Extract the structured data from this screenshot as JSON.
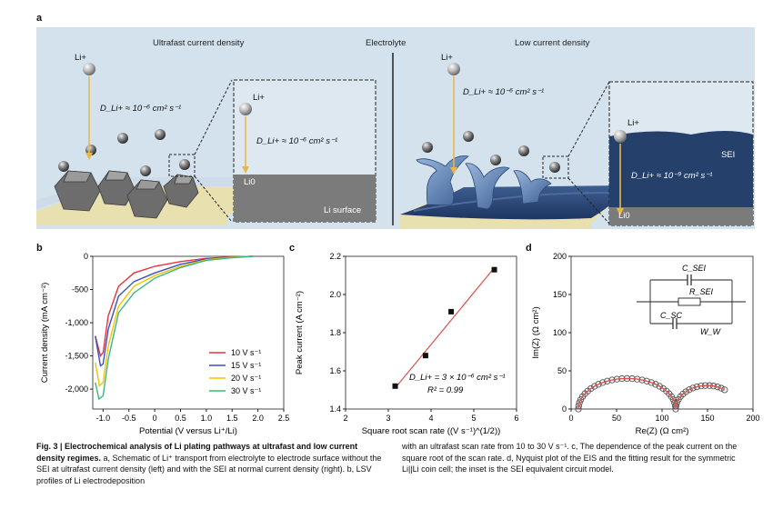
{
  "panel_a": {
    "letter": "a",
    "left_title": "Ultrafast current density",
    "center_title": "Electrolyte",
    "right_title": "Low current density",
    "li_ion": "Li+",
    "diff_fast": "D_Li+ ≈ 10⁻⁶ cm² s⁻¹",
    "diff_slow": "D_Li+ ≈ 10⁻⁹ cm² s⁻¹",
    "li0": "Li0",
    "li_surface": "Li surface",
    "sei": "SEI",
    "colors": {
      "bg": "#d3e2ed",
      "particle": "#7a7a7a",
      "arrow": "#e8b74a",
      "sei": "#25406a",
      "substrate": "#e9e0b0"
    }
  },
  "chart_data": [
    {
      "panel": "b",
      "type": "line",
      "xlabel": "Potential (V versus Li⁺/Li)",
      "ylabel": "Current density (mA cm⁻²)",
      "xlim": [
        -1.2,
        2.5
      ],
      "ylim": [
        -2300,
        0
      ],
      "xticks": [
        "-1.0",
        "-0.5",
        "0",
        "0.5",
        "1.0",
        "1.5",
        "2.0",
        "2.5"
      ],
      "yticks": [
        "0",
        "-500",
        "-1,000",
        "-1,500",
        "-2,000"
      ],
      "legend_position": "bottom-right",
      "series": [
        {
          "name": "10 V s⁻¹",
          "color": "#e8323c",
          "x": [
            -1.15,
            -1.05,
            -1.0,
            -0.9,
            -0.7,
            -0.4,
            0.0,
            0.5,
            1.0,
            1.5,
            1.9
          ],
          "y": [
            -1200,
            -1500,
            -1450,
            -900,
            -450,
            -250,
            -150,
            -80,
            -30,
            -10,
            0
          ]
        },
        {
          "name": "15 V s⁻¹",
          "color": "#3a4fc4",
          "x": [
            -1.15,
            -1.05,
            -1.0,
            -0.9,
            -0.7,
            -0.4,
            0.0,
            0.5,
            1.0,
            1.5,
            1.9
          ],
          "y": [
            -1200,
            -1650,
            -1620,
            -1100,
            -600,
            -380,
            -250,
            -120,
            -40,
            -15,
            0
          ]
        },
        {
          "name": "20 V s⁻¹",
          "color": "#f2c300",
          "x": [
            -1.15,
            -1.07,
            -1.0,
            -0.9,
            -0.7,
            -0.4,
            0.0,
            0.5,
            1.0,
            1.5,
            1.9
          ],
          "y": [
            -1600,
            -1950,
            -1900,
            -1350,
            -750,
            -450,
            -290,
            -150,
            -50,
            -15,
            0
          ]
        },
        {
          "name": "30 V s⁻¹",
          "color": "#3cb878",
          "x": [
            -1.15,
            -1.08,
            -1.0,
            -0.9,
            -0.7,
            -0.4,
            0.0,
            0.5,
            1.0,
            1.5,
            1.9
          ],
          "y": [
            -1900,
            -2150,
            -2100,
            -1550,
            -850,
            -550,
            -330,
            -170,
            -60,
            -20,
            0
          ]
        }
      ]
    },
    {
      "panel": "c",
      "type": "scatter",
      "xlabel": "Square root scan rate ((V s⁻¹)^(1/2))",
      "ylabel": "Peak current (A cm⁻²)",
      "xlim": [
        2,
        6
      ],
      "ylim": [
        1.4,
        2.2
      ],
      "xticks": [
        "2",
        "3",
        "4",
        "5",
        "6"
      ],
      "yticks": [
        "1.4",
        "1.6",
        "1.8",
        "2.0",
        "2.2"
      ],
      "points": [
        {
          "x": 3.16,
          "y": 1.52
        },
        {
          "x": 3.87,
          "y": 1.68
        },
        {
          "x": 4.47,
          "y": 1.91
        },
        {
          "x": 5.48,
          "y": 2.13
        }
      ],
      "fit": {
        "x": [
          3.16,
          5.48
        ],
        "y": [
          1.51,
          2.14
        ],
        "color": "#d9534f"
      },
      "annotation_1": "D_Li+ = 3 × 10⁻⁶ cm² s⁻¹",
      "annotation_2": "R² = 0.99"
    },
    {
      "panel": "d",
      "type": "scatter",
      "xlabel": "Re(Z) (Ω cm²)",
      "ylabel": "Im(Z) (Ω cm²)",
      "xlim": [
        0,
        200
      ],
      "ylim": [
        0,
        200
      ],
      "xticks": [
        "0",
        "50",
        "100",
        "150",
        "200"
      ],
      "yticks": [
        "0",
        "50",
        "100",
        "150",
        "200"
      ],
      "fit_color": "#d9534f",
      "circuit_labels": {
        "csei": "C_SEI",
        "rsei": "R_SEI",
        "csc": "C_SC",
        "ww": "W_W"
      }
    }
  ],
  "caption": {
    "col1_bold": "Fig. 3 | Electrochemical analysis of Li plating pathways at ultrafast and low current density regimes.",
    "col1_text": " a, Schematic of Li⁺ transport from electrolyte to electrode surface without the SEI at ultrafast current density (left) and with the SEI at normal current density (right). b, LSV profiles of Li electrodeposition",
    "col2_text": "with an ultrafast scan rate from 10 to 30 V s⁻¹. c, The dependence of the peak current on the square root of the scan rate. d, Nyquist plot of the EIS and the fitting result for the symmetric Li||Li coin cell; the inset is the SEI equivalent circuit model."
  }
}
